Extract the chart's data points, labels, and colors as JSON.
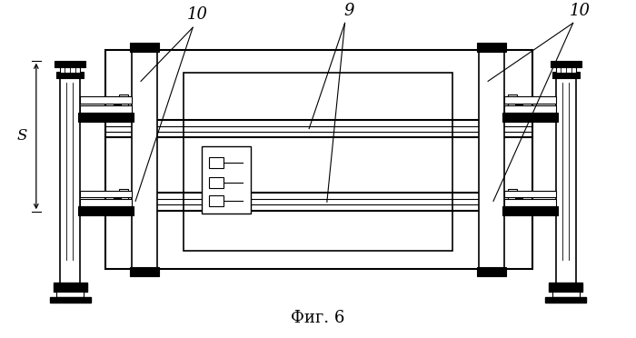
{
  "title": "Фиг. 6",
  "label_9": "9",
  "label_10_left": "10",
  "label_10_right": "10",
  "label_s": "S",
  "bg_color": "#ffffff",
  "lc": "#000000",
  "fig_width": 7.0,
  "fig_height": 3.72
}
